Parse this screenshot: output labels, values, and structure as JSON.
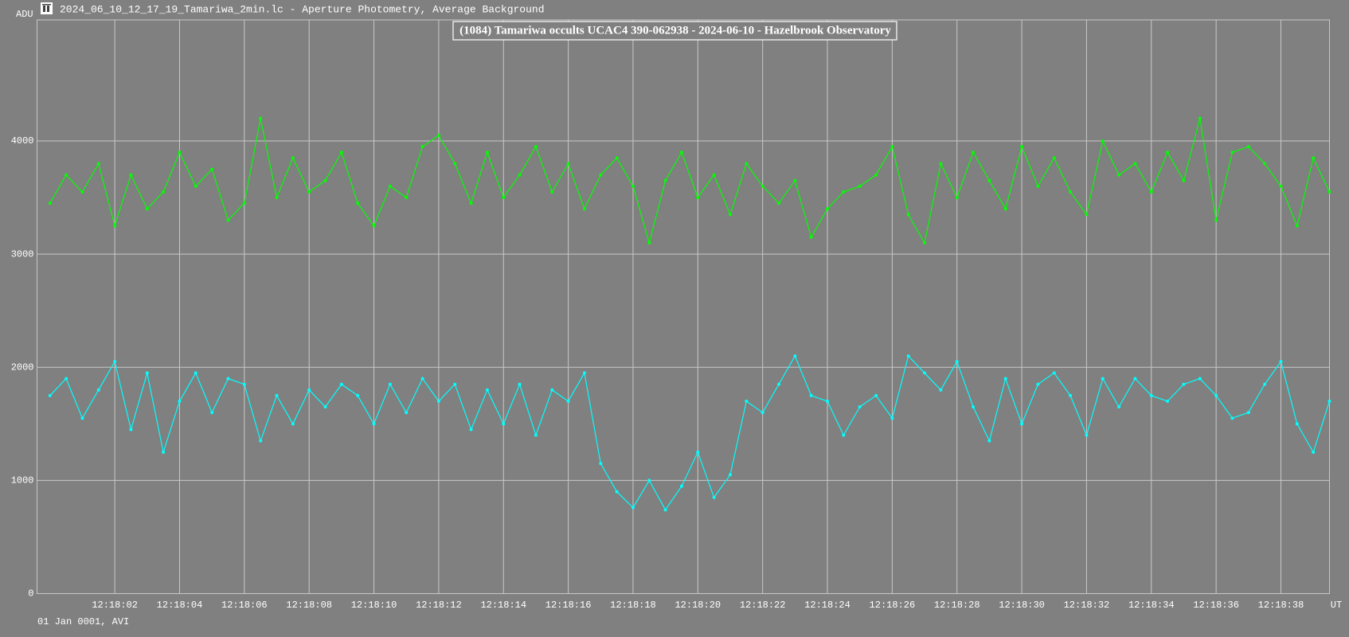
{
  "window_title": "2024_06_10_12_17_19_Tamariwa_2min.lc - Aperture Photometry, Average Background",
  "footer": "01 Jan 0001, AVI",
  "chart_data": {
    "type": "line",
    "title": "(1084) Tamariwa occults UCAC4 390-062938 - 2024-06-10 - Hazelbrook Observatory",
    "y_label": "ADU",
    "x_label": "UT",
    "xlim": [
      -0.4,
      39.5
    ],
    "xticks": [
      {
        "value": 2,
        "label": "12:18:02"
      },
      {
        "value": 4,
        "label": "12:18:04"
      },
      {
        "value": 6,
        "label": "12:18:06"
      },
      {
        "value": 8,
        "label": "12:18:08"
      },
      {
        "value": 10,
        "label": "12:18:10"
      },
      {
        "value": 12,
        "label": "12:18:12"
      },
      {
        "value": 14,
        "label": "12:18:14"
      },
      {
        "value": 16,
        "label": "12:18:16"
      },
      {
        "value": 18,
        "label": "12:18:18"
      },
      {
        "value": 20,
        "label": "12:18:20"
      },
      {
        "value": 22,
        "label": "12:18:22"
      },
      {
        "value": 24,
        "label": "12:18:24"
      },
      {
        "value": 26,
        "label": "12:18:26"
      },
      {
        "value": 28,
        "label": "12:18:28"
      },
      {
        "value": 30,
        "label": "12:18:30"
      },
      {
        "value": 32,
        "label": "12:18:32"
      },
      {
        "value": 34,
        "label": "12:18:34"
      },
      {
        "value": 36,
        "label": "12:18:36"
      },
      {
        "value": 38,
        "label": "12:18:38"
      }
    ],
    "ylim": [
      0,
      5070
    ],
    "yticks": [
      0,
      1000,
      2000,
      3000,
      4000
    ],
    "grid": true,
    "x": [
      0,
      0.5,
      1,
      1.5,
      2,
      2.5,
      3,
      3.5,
      4,
      4.5,
      5,
      5.5,
      6,
      6.5,
      7,
      7.5,
      8,
      8.5,
      9,
      9.5,
      10,
      10.5,
      11,
      11.5,
      12,
      12.5,
      13,
      13.5,
      14,
      14.5,
      15,
      15.5,
      16,
      16.5,
      17,
      17.5,
      18,
      18.5,
      19,
      19.5,
      20,
      20.5,
      21,
      21.5,
      22,
      22.5,
      23,
      23.5,
      24,
      24.5,
      25,
      25.5,
      26,
      26.5,
      27,
      27.5,
      28,
      28.5,
      29,
      29.5,
      30,
      30.5,
      31,
      31.5,
      32,
      32.5,
      33,
      33.5,
      34,
      34.5,
      35,
      35.5,
      36,
      36.5,
      37,
      37.5,
      38,
      38.5,
      39,
      39.5
    ],
    "series": [
      {
        "color": "#00ff00",
        "values": [
          3450,
          3700,
          3550,
          3800,
          3250,
          3700,
          3400,
          3550,
          3900,
          3600,
          3750,
          3300,
          3450,
          4200,
          3500,
          3850,
          3550,
          3650,
          3900,
          3450,
          3250,
          3600,
          3500,
          3950,
          4050,
          3800,
          3450,
          3900,
          3500,
          3700,
          3950,
          3550,
          3800,
          3400,
          3700,
          3850,
          3600,
          3100,
          3650,
          3900,
          3500,
          3700,
          3350,
          3800,
          3600,
          3450,
          3650,
          3150,
          3400,
          3550,
          3600,
          3700,
          3950,
          3350,
          3100,
          3800,
          3500,
          3900,
          3650,
          3400,
          3950,
          3600,
          3850,
          3550,
          3350,
          4000,
          3700,
          3800,
          3550,
          3900,
          3650,
          4200,
          3300,
          3900,
          3950,
          3800,
          3600,
          3250,
          3850,
          3550
        ]
      },
      {
        "color": "#00ffff",
        "values": [
          1750,
          1900,
          1550,
          1800,
          2050,
          1450,
          1950,
          1250,
          1700,
          1950,
          1600,
          1900,
          1850,
          1350,
          1750,
          1500,
          1800,
          1650,
          1850,
          1750,
          1500,
          1850,
          1600,
          1900,
          1700,
          1850,
          1450,
          1800,
          1500,
          1850,
          1400,
          1800,
          1700,
          1950,
          1150,
          900,
          760,
          1000,
          740,
          950,
          1250,
          850,
          1050,
          1700,
          1600,
          1850,
          2100,
          1750,
          1700,
          1400,
          1650,
          1750,
          1550,
          2100,
          1950,
          1800,
          2050,
          1650,
          1350,
          1900,
          1500,
          1850,
          1950,
          1750,
          1400,
          1900,
          1650,
          1900,
          1750,
          1700,
          1850,
          1900,
          1750,
          1550,
          1600,
          1850,
          2050,
          1500,
          1250,
          1700
        ]
      }
    ]
  }
}
